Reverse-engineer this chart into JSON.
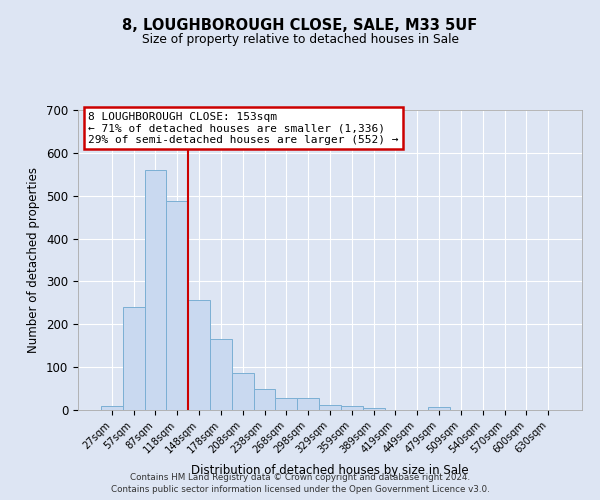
{
  "title": "8, LOUGHBOROUGH CLOSE, SALE, M33 5UF",
  "subtitle": "Size of property relative to detached houses in Sale",
  "xlabel": "Distribution of detached houses by size in Sale",
  "ylabel": "Number of detached properties",
  "bar_labels": [
    "27sqm",
    "57sqm",
    "87sqm",
    "118sqm",
    "148sqm",
    "178sqm",
    "208sqm",
    "238sqm",
    "268sqm",
    "298sqm",
    "329sqm",
    "359sqm",
    "389sqm",
    "419sqm",
    "449sqm",
    "479sqm",
    "509sqm",
    "540sqm",
    "570sqm",
    "600sqm",
    "630sqm"
  ],
  "bar_values": [
    10,
    240,
    560,
    487,
    257,
    165,
    87,
    50,
    27,
    27,
    11,
    9,
    5,
    0,
    0,
    6,
    0,
    0,
    0,
    0,
    0
  ],
  "bar_color": "#c9d9f0",
  "bar_edge_color": "#7bafd4",
  "vline_x": 3.5,
  "vline_color": "#cc0000",
  "ylim": [
    0,
    700
  ],
  "yticks": [
    0,
    100,
    200,
    300,
    400,
    500,
    600,
    700
  ],
  "annotation_title": "8 LOUGHBOROUGH CLOSE: 153sqm",
  "annotation_line1": "← 71% of detached houses are smaller (1,336)",
  "annotation_line2": "29% of semi-detached houses are larger (552) →",
  "annotation_box_color": "#cc0000",
  "bg_color": "#dde5f3",
  "plot_bg_color": "#dde5f3",
  "footer_line1": "Contains HM Land Registry data © Crown copyright and database right 2024.",
  "footer_line2": "Contains public sector information licensed under the Open Government Licence v3.0."
}
